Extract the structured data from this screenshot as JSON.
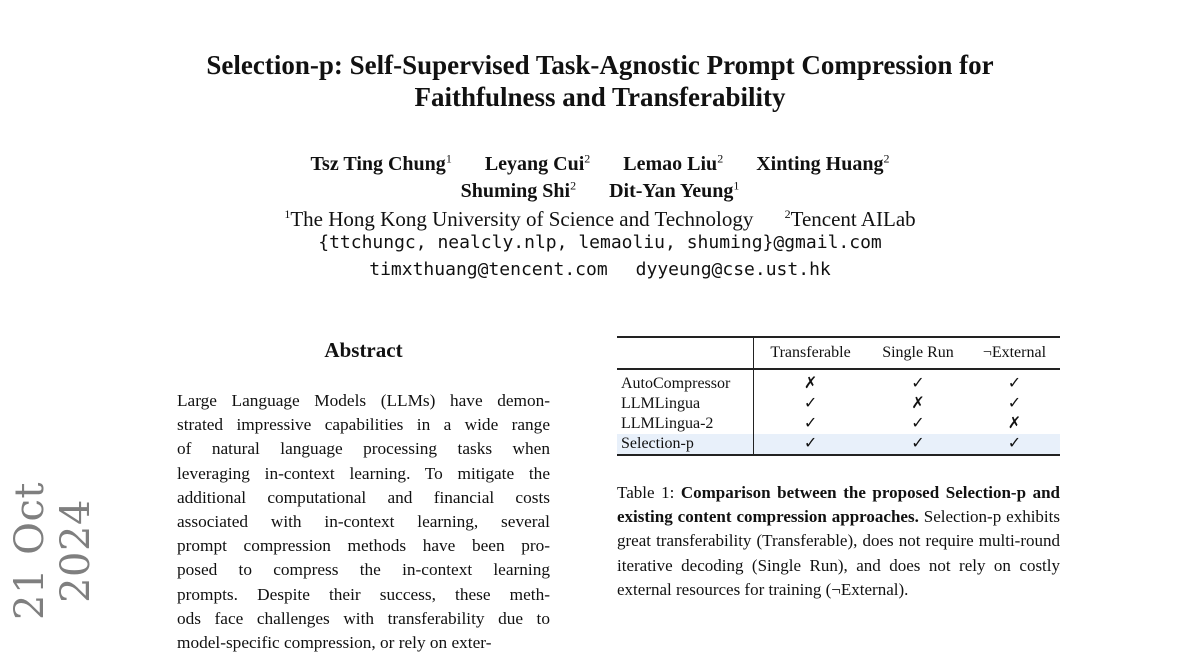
{
  "title": {
    "line1": "Selection-p: Self-Supervised Task-Agnostic Prompt Compression for",
    "line2": "Faithfulness and Transferability"
  },
  "authors": {
    "row1": [
      {
        "name": "Tsz Ting Chung",
        "aff": "1"
      },
      {
        "name": "Leyang Cui",
        "aff": "2"
      },
      {
        "name": "Lemao Liu",
        "aff": "2"
      },
      {
        "name": "Xinting Huang",
        "aff": "2"
      }
    ],
    "row2": [
      {
        "name": "Shuming Shi",
        "aff": "2"
      },
      {
        "name": "Dit-Yan Yeung",
        "aff": "1"
      }
    ]
  },
  "affiliations": [
    {
      "mark": "1",
      "name": "The Hong Kong University of Science and Technology"
    },
    {
      "mark": "2",
      "name": "Tencent AILab"
    }
  ],
  "emails": {
    "line1": "{ttchungc, nealcly.nlp, lemaoliu, shuming}@gmail.com",
    "line2": [
      "timxthuang@tencent.com",
      "dyyeung@cse.ust.hk"
    ]
  },
  "arxiv_date": "21 Oct 2024",
  "abstract": {
    "heading": "Abstract",
    "lines": [
      "Large Language Models (LLMs) have demon-",
      "strated impressive capabilities in a wide range",
      "of natural language processing tasks when",
      "leveraging in-context learning. To mitigate the",
      "additional computational and financial costs",
      "associated with in-context learning, several",
      "prompt compression methods have been pro-",
      "posed to compress the in-context learning",
      "prompts. Despite their success, these meth-",
      "ods face challenges with transferability due to",
      "model-specific compression, or rely on exter-"
    ]
  },
  "table": {
    "columns": [
      "",
      "Transferable",
      "Single Run",
      "¬External"
    ],
    "rows": [
      {
        "name": "AutoCompressor",
        "values": [
          "✗",
          "✓",
          "✓"
        ],
        "highlight": false
      },
      {
        "name": "LLMLingua",
        "values": [
          "✓",
          "✗",
          "✓"
        ],
        "highlight": false
      },
      {
        "name": "LLMLingua-2",
        "values": [
          "✓",
          "✓",
          "✗"
        ],
        "highlight": false
      },
      {
        "name": "Selection-p",
        "values": [
          "✓",
          "✓",
          "✓"
        ],
        "highlight": true
      }
    ],
    "highlight_color": "#e8f0fa",
    "caption": {
      "label": "Table 1: ",
      "bold": "Comparison between the proposed Selection-p and existing content compression approaches.",
      "text": " Selection-p exhibits great transferability (Transferable), does not require multi-round iterative decoding (Single Run), and does not rely on costly external resources for training (¬External)."
    }
  }
}
